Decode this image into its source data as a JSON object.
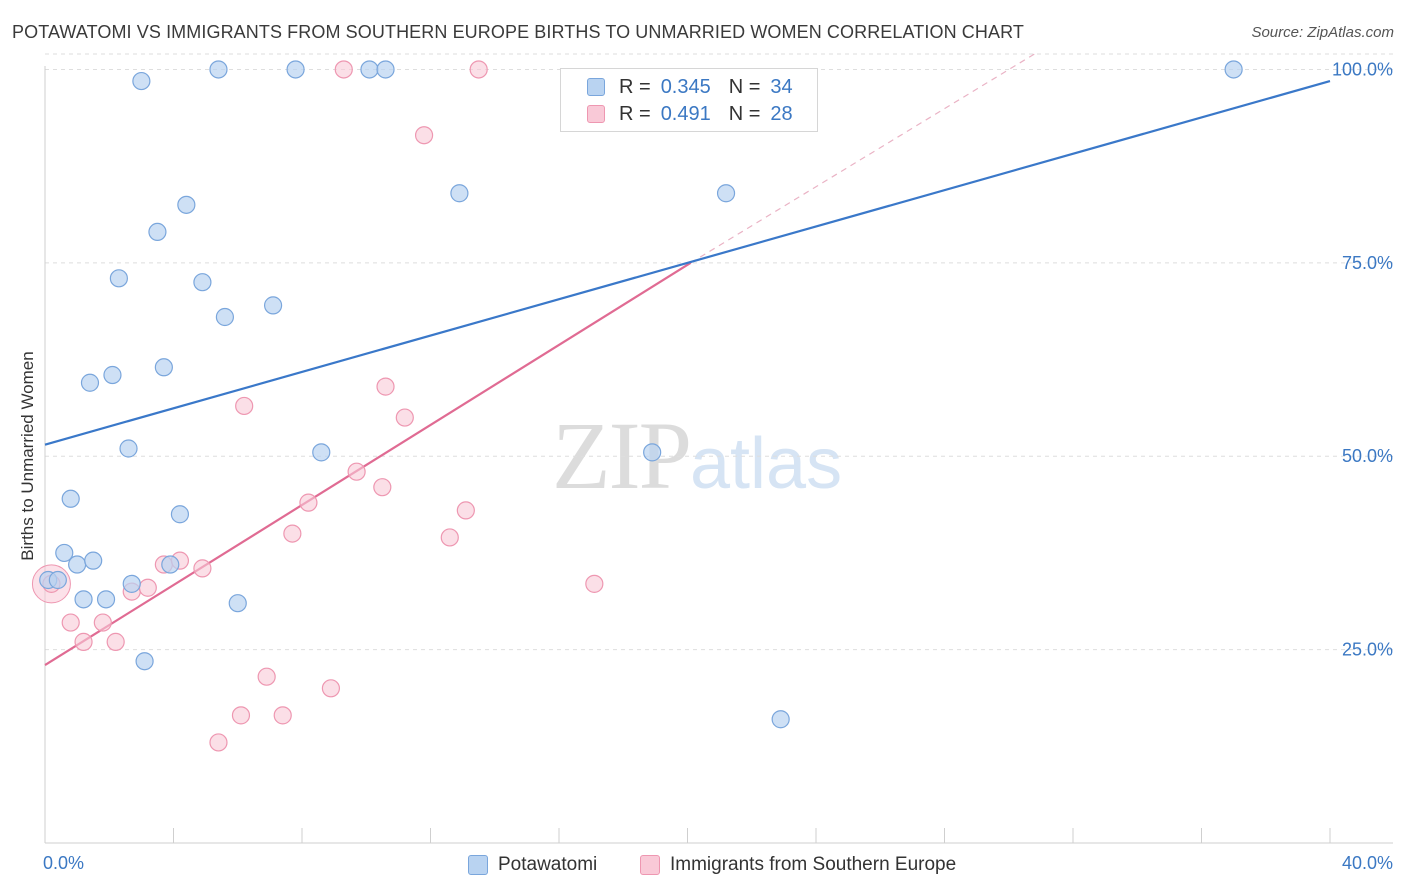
{
  "title": "POTAWATOMI VS IMMIGRANTS FROM SOUTHERN EUROPE BIRTHS TO UNMARRIED WOMEN CORRELATION CHART",
  "source": "Source: ZipAtlas.com",
  "watermark": {
    "zip": "ZIP",
    "atlas": "atlas"
  },
  "legend": {
    "rows": [
      {
        "r_label": "R =",
        "r_value": "0.345",
        "n_label": "N =",
        "n_value": "34"
      },
      {
        "r_label": "R =",
        "r_value": "0.491",
        "n_label": "N =",
        "n_value": "28"
      }
    ]
  },
  "colors": {
    "blue_fill": "#b9d3f1",
    "blue_stroke": "#7aa6dc",
    "blue_line": "#3a78c9",
    "pink_fill": "#f9c9d7",
    "pink_stroke": "#ee97b1",
    "pink_line": "#e06b93",
    "tick_text": "#3b78c3",
    "grid": "#dedede"
  },
  "chart_data": {
    "type": "scatter",
    "title": "POTAWATOMI VS IMMIGRANTS FROM SOUTHERN EUROPE BIRTHS TO UNMARRIED WOMEN CORRELATION CHART",
    "xlabel": "",
    "ylabel": "Births to Unmarried Women",
    "xlim": [
      0,
      40
    ],
    "ylim": [
      0,
      102
    ],
    "x_ticks": [
      "0.0%",
      "40.0%"
    ],
    "y_ticks": [
      {
        "value": 25,
        "label": "25.0%"
      },
      {
        "value": 50,
        "label": "50.0%"
      },
      {
        "value": 75,
        "label": "75.0%"
      },
      {
        "value": 100,
        "label": "100.0%"
      }
    ],
    "grid": "horizontal-dashed",
    "legend_position": "bottom",
    "series": [
      {
        "name": "Potawatomi",
        "color": "blue",
        "r": 0.345,
        "n": 34,
        "trend": {
          "x": [
            0,
            40
          ],
          "y": [
            51.5,
            98.5
          ]
        },
        "points": [
          [
            0.1,
            34.0
          ],
          [
            0.4,
            34.0
          ],
          [
            0.6,
            37.5
          ],
          [
            0.8,
            44.5
          ],
          [
            1.0,
            36.0
          ],
          [
            1.2,
            31.5
          ],
          [
            1.4,
            59.5
          ],
          [
            1.5,
            36.5
          ],
          [
            1.9,
            31.5
          ],
          [
            2.1,
            60.5
          ],
          [
            2.3,
            73.0
          ],
          [
            2.6,
            51.0
          ],
          [
            2.7,
            33.5
          ],
          [
            3.0,
            98.5
          ],
          [
            3.1,
            23.5
          ],
          [
            3.5,
            79.0
          ],
          [
            3.7,
            61.5
          ],
          [
            3.9,
            36.0
          ],
          [
            4.2,
            42.5
          ],
          [
            4.4,
            82.5
          ],
          [
            4.9,
            72.5
          ],
          [
            5.4,
            100.0
          ],
          [
            5.6,
            68.0
          ],
          [
            6.0,
            31.0
          ],
          [
            7.1,
            69.5
          ],
          [
            7.8,
            100.0
          ],
          [
            8.6,
            50.5
          ],
          [
            10.1,
            100.0
          ],
          [
            10.6,
            100.0
          ],
          [
            12.9,
            84.0
          ],
          [
            18.9,
            50.5
          ],
          [
            21.2,
            84.0
          ],
          [
            22.9,
            16.0
          ],
          [
            37.0,
            100.0
          ]
        ]
      },
      {
        "name": "Immigrants from Southern Europe",
        "color": "pink",
        "r": 0.491,
        "n": 28,
        "trend": {
          "x": [
            0,
            20.1
          ],
          "y": [
            23.0,
            75.0
          ]
        },
        "trend_extension": {
          "x": [
            20.1,
            30.8
          ],
          "y": [
            75.0,
            102.0
          ]
        },
        "points": [
          [
            0.2,
            33.5
          ],
          [
            0.8,
            28.5
          ],
          [
            1.2,
            26.0
          ],
          [
            1.8,
            28.5
          ],
          [
            2.2,
            26.0
          ],
          [
            2.7,
            32.5
          ],
          [
            3.2,
            33.0
          ],
          [
            3.7,
            36.0
          ],
          [
            4.2,
            36.5
          ],
          [
            4.9,
            35.5
          ],
          [
            5.4,
            13.0
          ],
          [
            6.1,
            16.5
          ],
          [
            6.2,
            56.5
          ],
          [
            6.9,
            21.5
          ],
          [
            7.4,
            16.5
          ],
          [
            7.7,
            40.0
          ],
          [
            8.2,
            44.0
          ],
          [
            8.9,
            20.0
          ],
          [
            9.3,
            100.0
          ],
          [
            9.7,
            48.0
          ],
          [
            10.5,
            46.0
          ],
          [
            10.6,
            59.0
          ],
          [
            11.2,
            55.0
          ],
          [
            11.8,
            91.5
          ],
          [
            12.6,
            39.5
          ],
          [
            13.1,
            43.0
          ],
          [
            13.5,
            100.0
          ],
          [
            17.1,
            33.5
          ]
        ]
      }
    ]
  }
}
